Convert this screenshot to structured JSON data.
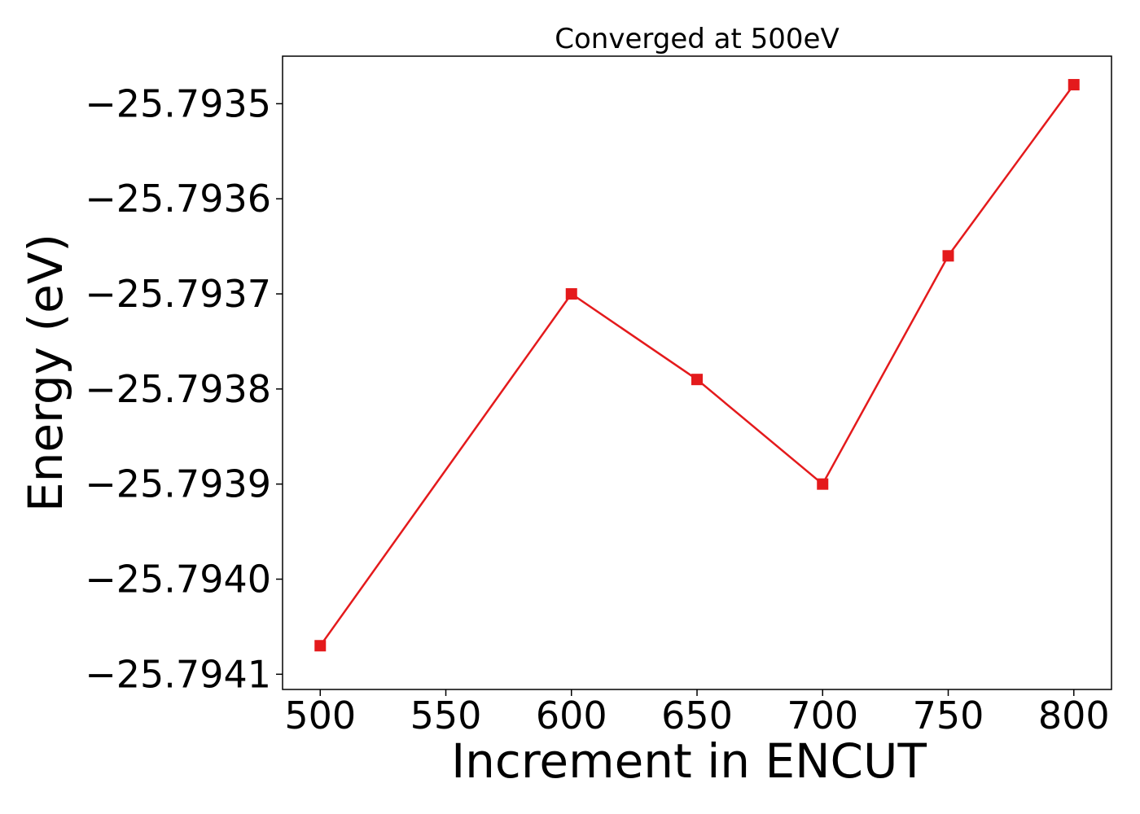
{
  "chart_data": {
    "type": "line",
    "title": "Converged at 500eV",
    "xlabel": "Increment in ENCUT",
    "ylabel": "Energy (eV)",
    "x": [
      500,
      600,
      650,
      700,
      750,
      800
    ],
    "series": [
      {
        "values": [
          -25.79407,
          -25.7937,
          -25.79379,
          -25.7939,
          -25.79366,
          -25.79348
        ],
        "color": "#e41a1c",
        "marker": "square"
      }
    ],
    "xlim": [
      485,
      815
    ],
    "ylim": [
      -25.794116,
      -25.79345
    ],
    "xticks": [
      500,
      550,
      600,
      650,
      700,
      750,
      800
    ],
    "xtick_labels": [
      "500",
      "550",
      "600",
      "650",
      "700",
      "750",
      "800"
    ],
    "yticks": [
      -25.7941,
      -25.794,
      -25.7939,
      -25.7938,
      -25.7937,
      -25.7936,
      -25.7935
    ],
    "ytick_labels": [
      "−25.7941",
      "−25.7940",
      "−25.7939",
      "−25.7938",
      "−25.7937",
      "−25.7936",
      "−25.7935"
    ],
    "grid": false,
    "legend": "none"
  }
}
